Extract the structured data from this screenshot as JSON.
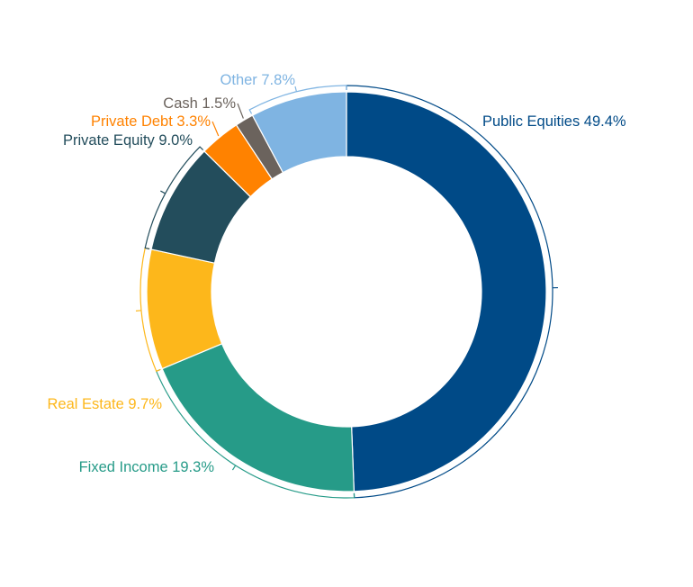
{
  "chart_data": {
    "type": "pie",
    "variant": "donut",
    "title": "",
    "start_angle_deg": 0,
    "direction": "clockwise",
    "slices": [
      {
        "label": "Public Equities 49.4%",
        "name": "Public Equities",
        "value": 49.4,
        "color": "#004a87"
      },
      {
        "label": "Fixed Income 19.3%",
        "name": "Fixed Income",
        "value": 19.3,
        "color": "#269b88"
      },
      {
        "label": "Real Estate 9.7%",
        "name": "Real Estate",
        "value": 9.7,
        "color": "#fdb71b"
      },
      {
        "label": "Private Equity 9.0%",
        "name": "Private Equity",
        "value": 9.0,
        "color": "#234d5c"
      },
      {
        "label": "Private Debt 3.3%",
        "name": "Private Debt",
        "value": 3.3,
        "color": "#ff8200"
      },
      {
        "label": "Cash 1.5%",
        "name": "Cash",
        "value": 1.5,
        "color": "#6b635d"
      },
      {
        "label": "Other 7.8%",
        "name": "Other",
        "value": 7.8,
        "color": "#7fb4e2"
      }
    ]
  }
}
